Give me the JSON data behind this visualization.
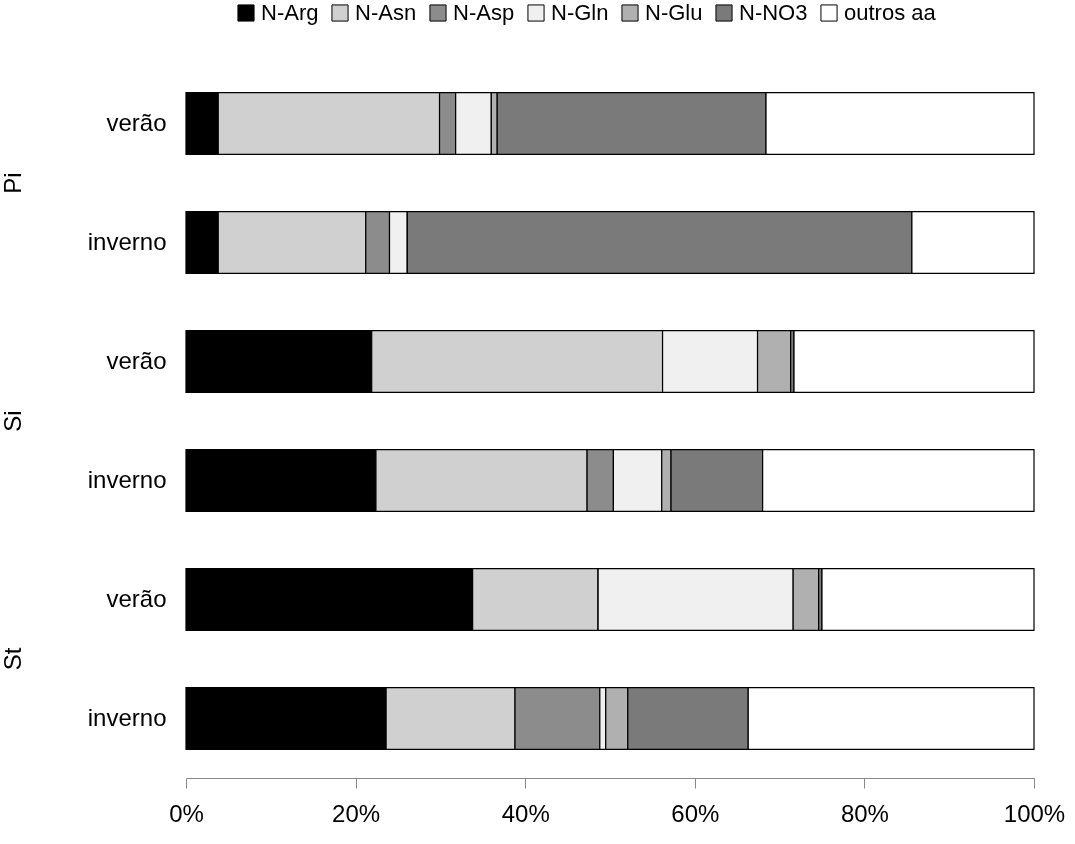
{
  "chart_data": {
    "type": "bar",
    "orientation": "horizontal",
    "stacked": true,
    "legend": "top",
    "grid": false,
    "categories": [
      "verão",
      "inverno",
      "verão",
      "inverno",
      "verão",
      "inverno"
    ],
    "annotations": [
      "Pi",
      "Si",
      "St"
    ],
    "xlim": [
      0,
      100
    ],
    "xticks": [
      {
        "value": 0,
        "label": "0%"
      },
      {
        "value": 20,
        "label": "20%"
      },
      {
        "value": 40,
        "label": "40%"
      },
      {
        "value": 60,
        "label": "60%"
      },
      {
        "value": 80,
        "label": "80%"
      },
      {
        "value": 100,
        "label": "100%"
      }
    ],
    "series": [
      {
        "name": "N-Arg",
        "color": "#000000",
        "values": [
          3.8,
          3.8,
          21.9,
          22.4,
          33.8,
          23.6
        ]
      },
      {
        "name": "N-Asn",
        "color": "#d0d0d0",
        "values": [
          26.1,
          17.4,
          34.3,
          24.9,
          14.8,
          15.2
        ]
      },
      {
        "name": "N-Asp",
        "color": "#8c8c8c",
        "values": [
          1.9,
          2.8,
          0,
          3.1,
          0,
          10.0
        ]
      },
      {
        "name": "N-Gln",
        "color": "#f0f0f0",
        "values": [
          4.2,
          2.1,
          11.2,
          5.7,
          23.0,
          0.7
        ]
      },
      {
        "name": "N-Glu",
        "color": "#b0b0b0",
        "values": [
          0.7,
          0,
          3.9,
          1.1,
          3.0,
          2.6
        ]
      },
      {
        "name": "N-NO3",
        "color": "#7a7a7a",
        "values": [
          31.7,
          59.5,
          0.4,
          10.8,
          0.4,
          14.2
        ]
      },
      {
        "name": "outros aa",
        "color": "#ffffff",
        "values": [
          31.6,
          14.4,
          28.3,
          32.0,
          25.0,
          33.7
        ]
      }
    ]
  }
}
